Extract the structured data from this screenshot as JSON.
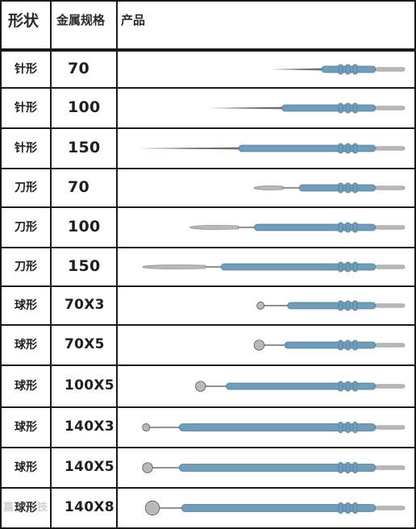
{
  "header": {
    "shape": "形状",
    "spec": "金属规格",
    "product": "产品"
  },
  "rows": [
    {
      "shape": "针形",
      "spec": "70",
      "tip": "needle",
      "length": 0.48
    },
    {
      "shape": "针形",
      "spec": "100",
      "tip": "needle",
      "length": 0.71
    },
    {
      "shape": "针形",
      "spec": "150",
      "tip": "needle",
      "length": 0.96
    },
    {
      "shape": "刀形",
      "spec": "70",
      "tip": "blade",
      "length": 0.54
    },
    {
      "shape": "刀形",
      "spec": "100",
      "tip": "blade",
      "length": 0.77
    },
    {
      "shape": "刀形",
      "spec": "150",
      "tip": "blade",
      "length": 0.94
    },
    {
      "shape": "球形",
      "spec": "70X3",
      "tip": "ball",
      "length": 0.53
    },
    {
      "shape": "球形",
      "spec": "70X5",
      "tip": "ball",
      "length": 0.54
    },
    {
      "shape": "球形",
      "spec": "100X5",
      "tip": "ball",
      "length": 0.75
    },
    {
      "shape": "球形",
      "spec": "140X3",
      "tip": "ball",
      "length": 0.94
    },
    {
      "shape": "球形",
      "spec": "140X5",
      "tip": "ball",
      "length": 0.94
    },
    {
      "shape": "球形",
      "spec": "140X8",
      "tip": "ball",
      "length": 0.93
    }
  ],
  "watermark": "嘉联科技",
  "colors": {
    "handle": "#6f9dba",
    "handle_dark": "#4f7d9b",
    "metal": "#b9b9b9",
    "metal_dark": "#6f6f6f",
    "line": "#1a1a1a"
  }
}
